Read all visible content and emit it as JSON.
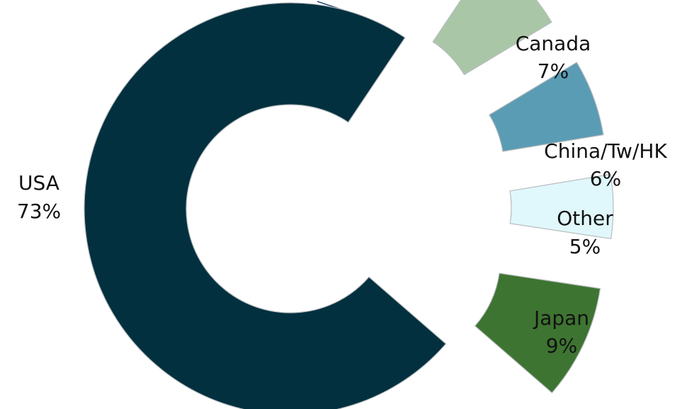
{
  "chart_data": {
    "type": "pie",
    "variant": "donut",
    "slices": [
      {
        "label": "USA",
        "value": 73,
        "value_label": "73%",
        "color": "#02303f"
      },
      {
        "label": "Canada",
        "value": 7,
        "value_label": "7%",
        "color": "#a9c7a6"
      },
      {
        "label": "China/Tw/HK",
        "value": 6,
        "value_label": "6%",
        "color": "#5a9cb4"
      },
      {
        "label": "Other",
        "value": 5,
        "value_label": "5%",
        "color": "#e0f8fb"
      },
      {
        "label": "Japan",
        "value": 9,
        "value_label": "9%",
        "color": "#3e7431"
      }
    ],
    "exploded": [
      "Canada",
      "China/Tw/HK",
      "Other",
      "Japan"
    ],
    "legend": "none"
  }
}
